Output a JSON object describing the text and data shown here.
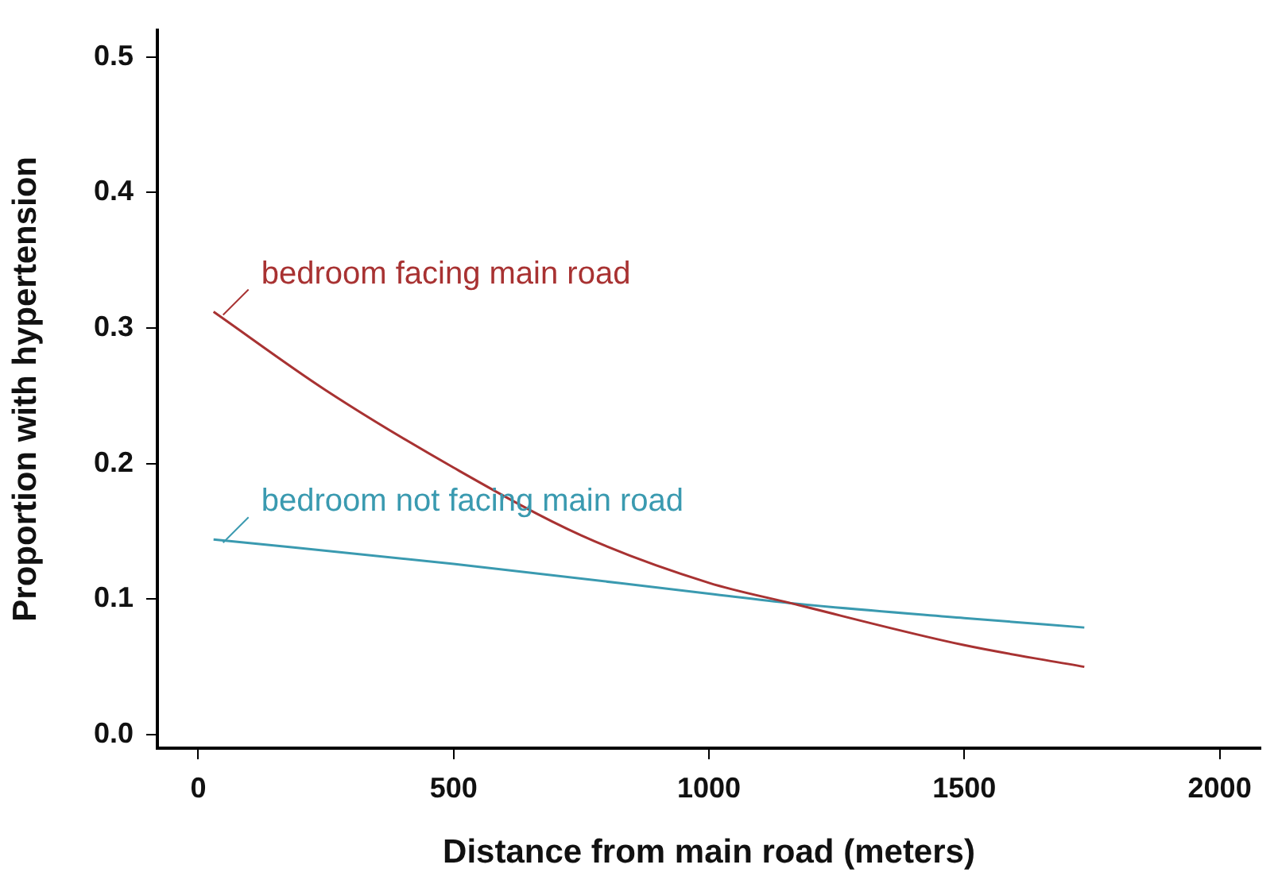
{
  "chart_data": {
    "type": "line",
    "xlabel": "Distance from main road (meters)",
    "ylabel": "Proportion with hypertension",
    "xlim": [
      -80,
      2080
    ],
    "ylim": [
      -0.01,
      0.52
    ],
    "xticks": [
      0,
      500,
      1000,
      1500,
      2000
    ],
    "yticks": [
      {
        "value": 0,
        "label": "0.0"
      },
      {
        "value": 0.1,
        "label": "0.1"
      },
      {
        "value": 0.2,
        "label": "0.2"
      },
      {
        "value": 0.3,
        "label": "0.3"
      },
      {
        "value": 0.4,
        "label": "0.4"
      },
      {
        "value": 0.5,
        "label": "0.5"
      }
    ],
    "grid": false,
    "legend": false,
    "marker": "none",
    "line_style": "solid",
    "series": [
      {
        "name": "bedroom facing main road",
        "color": "#a83232",
        "x": [
          30,
          250,
          500,
          750,
          1000,
          1160,
          1500,
          1735
        ],
        "values": [
          0.312,
          0.254,
          0.197,
          0.147,
          0.112,
          0.097,
          0.066,
          0.05
        ]
      },
      {
        "name": "bedroom not facing main road",
        "color": "#3a9ab0",
        "x": [
          30,
          500,
          1000,
          1160,
          1500,
          1735
        ],
        "values": [
          0.144,
          0.126,
          0.104,
          0.097,
          0.086,
          0.079
        ]
      }
    ]
  }
}
